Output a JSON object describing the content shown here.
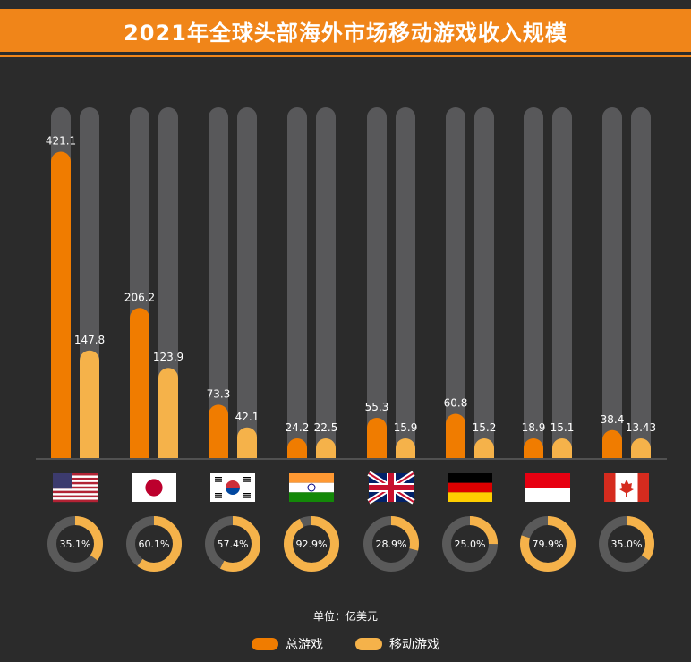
{
  "header": {
    "title": "2021年全球头部海外市场移动游戏收入规模"
  },
  "colors": {
    "total": "#f07c00",
    "mobile": "#f5b24a",
    "track": "#58585a",
    "ring_track": "#5a5a5a",
    "label": "#ffffff",
    "baseline": "#777777"
  },
  "chart_data": {
    "type": "bar",
    "title": "2021年全球头部海外市场移动游戏收入规模",
    "unit": "单位：亿美元",
    "ylim": [
      0,
      450
    ],
    "categories": [
      "美国",
      "日本",
      "韩国",
      "印度",
      "英国",
      "德国",
      "印度尼西亚",
      "加拿大"
    ],
    "flags": [
      "us-flag",
      "japan-flag",
      "korea-flag",
      "india-flag",
      "uk-flag",
      "germany-flag",
      "indonesia-flag",
      "canada-flag"
    ],
    "series": [
      {
        "name": "总游戏",
        "values": [
          421.1,
          206.2,
          73.3,
          24.2,
          55.3,
          60.8,
          18.9,
          38.4
        ],
        "labels": [
          "421.1",
          "206.2",
          "73.3",
          "24.2",
          "55.3",
          "60.8",
          "18.9",
          "38.4"
        ]
      },
      {
        "name": "移动游戏",
        "values": [
          147.8,
          123.9,
          42.1,
          22.5,
          15.9,
          15.2,
          15.1,
          13.43
        ],
        "labels": [
          "147.8",
          "123.9",
          "42.1",
          "22.5",
          "15.9",
          "15.2",
          "15.1",
          "13.43"
        ]
      }
    ],
    "share": {
      "values": [
        35.1,
        60.1,
        57.4,
        92.9,
        28.9,
        25.0,
        79.9,
        35.0
      ],
      "labels": [
        "35.1%",
        "60.1%",
        "57.4%",
        "92.9%",
        "28.9%",
        "25.0%",
        "79.9%",
        "35.0%"
      ]
    },
    "legend": [
      "总游戏",
      "移动游戏"
    ]
  }
}
